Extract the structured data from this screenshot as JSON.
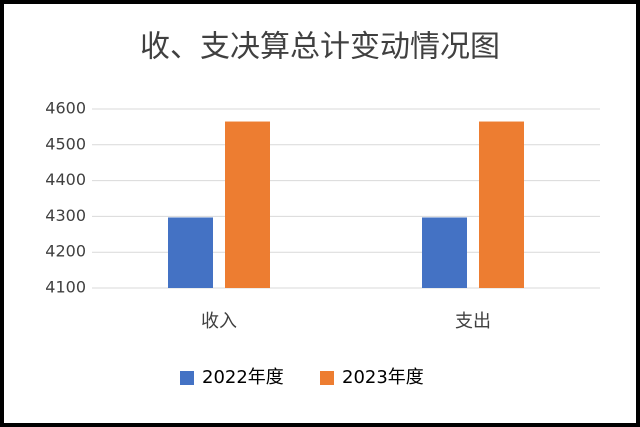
{
  "chart_data": {
    "type": "bar",
    "title": "收、支决算总计变动情况图",
    "categories": [
      "收入",
      "支出"
    ],
    "series": [
      {
        "name": "2022年度",
        "color": "#4472c4",
        "values": [
          4297,
          4297
        ]
      },
      {
        "name": "2023年度",
        "color": "#ed7d31",
        "values": [
          4565,
          4565
        ]
      }
    ],
    "ylim": [
      4100,
      4600
    ],
    "yticks": [
      4100,
      4200,
      4300,
      4400,
      4500,
      4600
    ],
    "grid": true,
    "legend": "bottom"
  }
}
